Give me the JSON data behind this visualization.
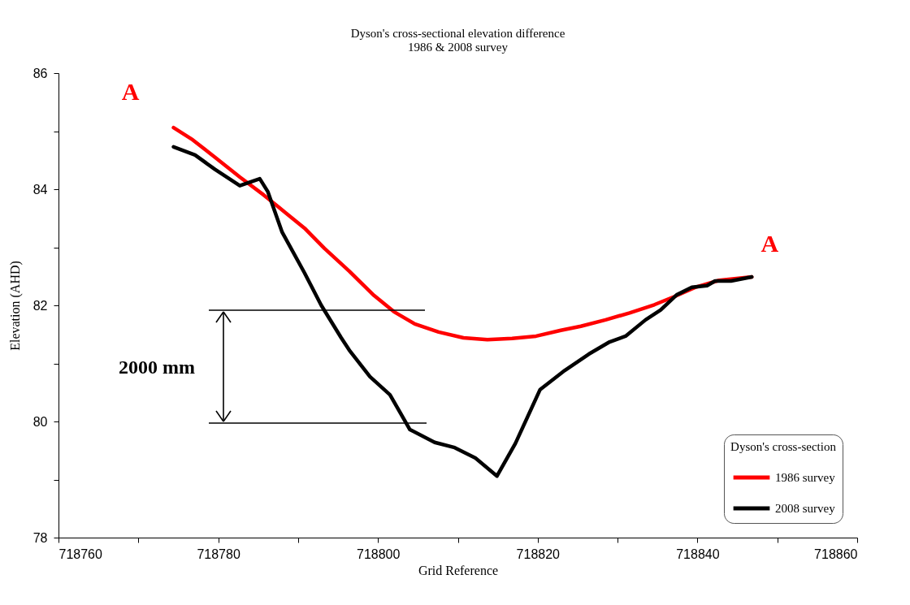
{
  "chart_data": {
    "type": "line",
    "title": "Dyson's cross-sectional elevation difference",
    "subtitle": "1986 & 2008 survey",
    "xlabel": "Grid Reference",
    "ylabel": "Elevation (AHD)",
    "legend_title": "Dyson's cross-section",
    "legend": "bottom right",
    "grid": false,
    "marker": "none",
    "line_style": "solid",
    "xlim": [
      718760,
      718860
    ],
    "xticks": [
      718760,
      {
        "value": 718770,
        "label": null
      },
      718780,
      {
        "value": 718790,
        "label": null
      },
      718800,
      {
        "value": 718810,
        "label": null
      },
      718820,
      {
        "value": 718830,
        "label": null
      },
      718840,
      {
        "value": 718850,
        "label": null
      },
      718860
    ],
    "ylim": [
      78,
      86
    ],
    "yticks": [
      78,
      {
        "value": 79,
        "label": null
      },
      80,
      {
        "value": 81,
        "label": null
      },
      82,
      {
        "value": 83,
        "label": null
      },
      84,
      {
        "value": 85,
        "label": null
      },
      86
    ],
    "series": [
      {
        "name": "1986 survey",
        "color": "#ff0000",
        "x": [
          718774.4,
          718776.8,
          718779.6,
          718782.7,
          718785.7,
          718788.3,
          718790.8,
          718793.3,
          718796.4,
          718799.5,
          718802,
          718804.6,
          718807.6,
          718810.7,
          718813.7,
          718816.8,
          718819.8,
          718822.9,
          718825.4,
          718828.5,
          718831.5,
          718834.6,
          718837.1,
          718839.7,
          718842.7,
          718846.8
        ],
        "values": [
          85.06,
          84.85,
          84.55,
          84.21,
          83.9,
          83.61,
          83.33,
          82.98,
          82.59,
          82.17,
          81.89,
          81.68,
          81.54,
          81.44,
          81.41,
          81.43,
          81.47,
          81.57,
          81.64,
          81.75,
          81.87,
          82.01,
          82.15,
          82.31,
          82.43,
          82.49
        ]
      },
      {
        "name": "2008 survey",
        "color": "#000000",
        "x": [
          718774.4,
          718777.1,
          718779.6,
          718782.7,
          718785.2,
          718786.2,
          718788,
          718790.8,
          718792.9,
          718795.4,
          718796.4,
          718799,
          718801.5,
          718804,
          718807.1,
          718809.6,
          718812.2,
          718814.9,
          718817.2,
          718820.3,
          718823.4,
          718826.4,
          718829,
          718831,
          718833.5,
          718835.4,
          718837.4,
          718839.3,
          718841.2,
          718842.2,
          718844.2,
          718846.8
        ],
        "values": [
          84.73,
          84.59,
          84.34,
          84.06,
          84.18,
          83.96,
          83.26,
          82.56,
          82.0,
          81.44,
          81.23,
          80.77,
          80.46,
          79.86,
          79.64,
          79.55,
          79.37,
          79.06,
          79.62,
          80.55,
          80.88,
          81.16,
          81.37,
          81.47,
          81.75,
          81.92,
          82.18,
          82.31,
          82.34,
          82.42,
          82.42,
          82.49
        ]
      }
    ],
    "annotations": [
      "A",
      "A",
      "2000 mm"
    ]
  }
}
